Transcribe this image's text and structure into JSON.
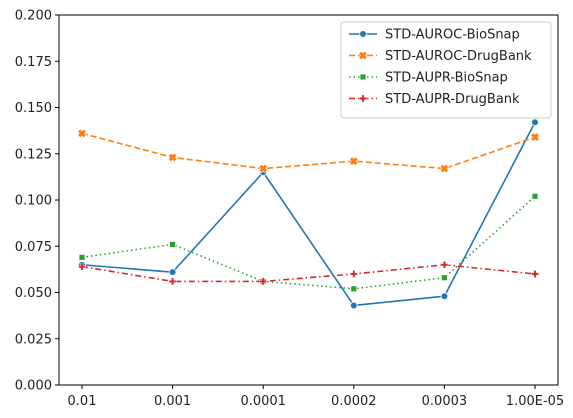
{
  "chart_data": {
    "type": "line",
    "title": "",
    "xlabel": "",
    "ylabel": "",
    "categories": [
      "0.01",
      "0.001",
      "0.0001",
      "0.0002",
      "0.0003",
      "1.00E-05"
    ],
    "ylim": [
      0,
      0.2
    ],
    "yticks": [
      "0.000",
      "0.025",
      "0.050",
      "0.075",
      "0.100",
      "0.125",
      "0.150",
      "0.175",
      "0.200"
    ],
    "grid": false,
    "legend_position": "top-right",
    "series": [
      {
        "name": "STD-AUROC-BioSnap",
        "color": "#1f77b4",
        "line_style": "solid",
        "marker": "circle",
        "values": [
          0.065,
          0.061,
          0.115,
          0.043,
          0.048,
          0.142
        ]
      },
      {
        "name": "STD-AUROC-DrugBank",
        "color": "#ff7f0e",
        "line_style": "dashed",
        "marker": "x",
        "values": [
          0.136,
          0.123,
          0.117,
          0.121,
          0.117,
          0.134
        ]
      },
      {
        "name": "STD-AUPR-BioSnap",
        "color": "#2ca02c",
        "line_style": "dotted",
        "marker": "square",
        "values": [
          0.069,
          0.076,
          0.056,
          0.052,
          0.058,
          0.102
        ]
      },
      {
        "name": "STD-AUPR-DrugBank",
        "color": "#d62728",
        "line_style": "dashdot",
        "marker": "plus",
        "values": [
          0.064,
          0.056,
          0.056,
          0.06,
          0.065,
          0.06
        ]
      }
    ]
  }
}
